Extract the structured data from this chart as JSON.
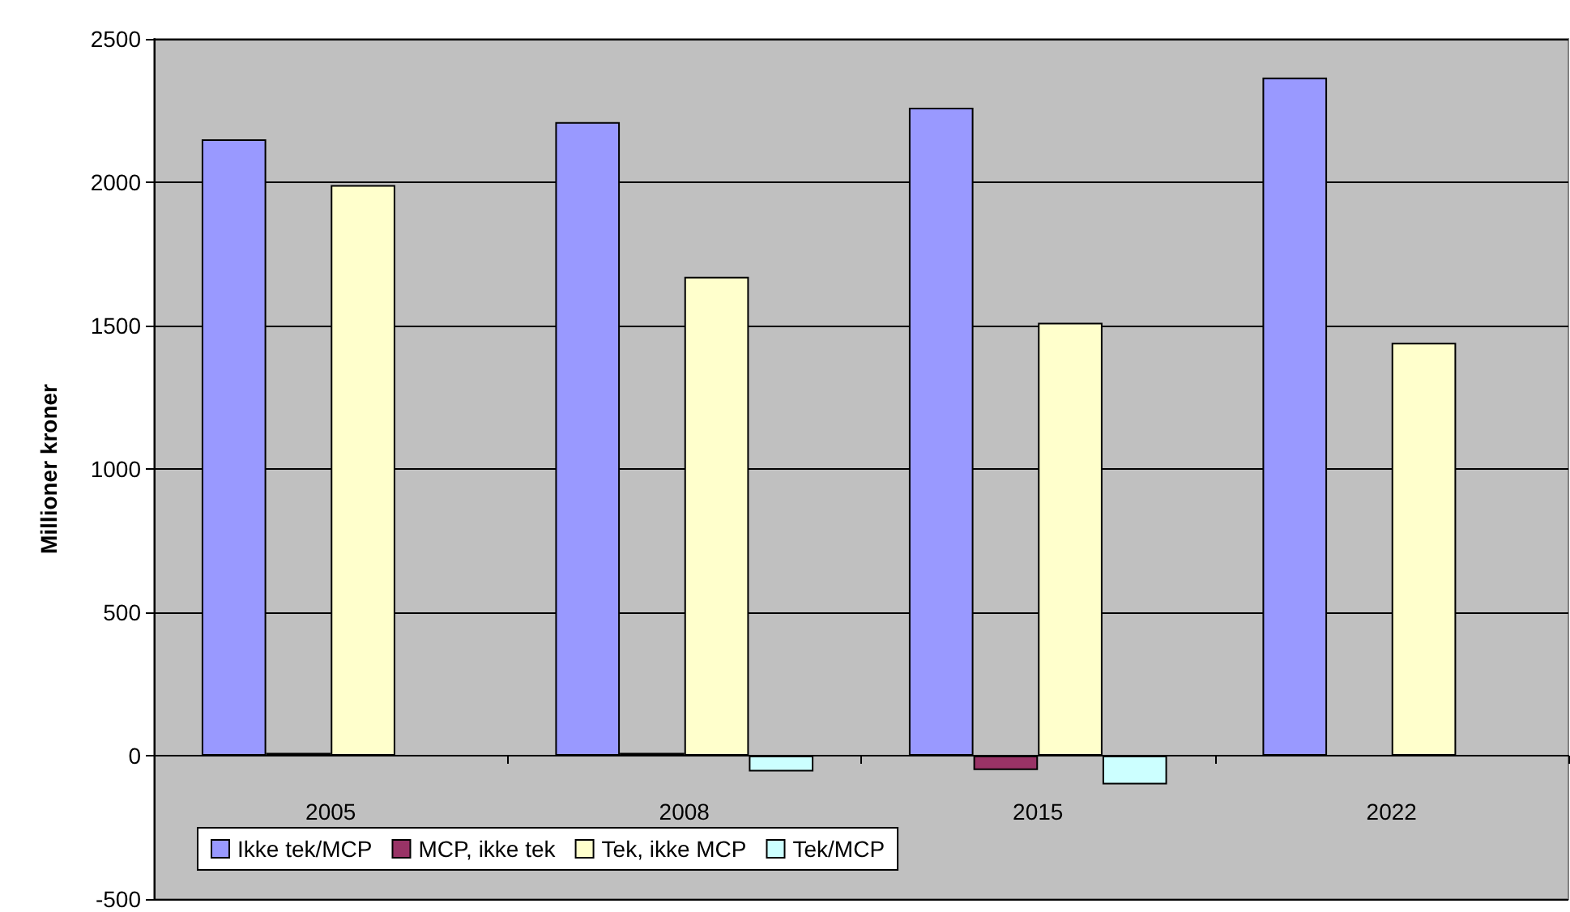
{
  "chart_data": {
    "type": "bar",
    "ylabel": "Millioner kroner",
    "categories": [
      "2005",
      "2008",
      "2015",
      "2022"
    ],
    "series": [
      {
        "name": "Ikke tek/MCP",
        "color": "#9999ff",
        "values": [
          2150,
          2210,
          2260,
          2365
        ]
      },
      {
        "name": "MCP, ikke tek",
        "color": "#993366",
        "values": [
          10,
          10,
          -50,
          null
        ]
      },
      {
        "name": "Tek, ikke MCP",
        "color": "#ffffcc",
        "values": [
          1990,
          1670,
          1510,
          1440
        ]
      },
      {
        "name": "Tek/MCP",
        "color": "#ccffff",
        "values": [
          null,
          -55,
          -100,
          null
        ]
      }
    ],
    "ylim": [
      -500,
      2500
    ],
    "yticks": [
      -500,
      0,
      500,
      1000,
      1500,
      2000,
      2500
    ],
    "grid": "y",
    "legend": "bottom left"
  }
}
